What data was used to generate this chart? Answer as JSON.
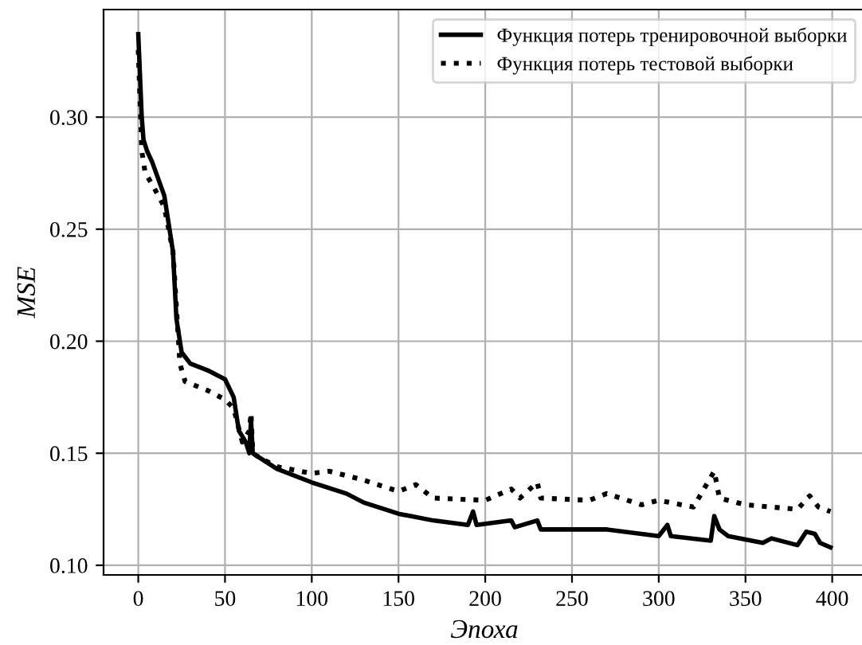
{
  "chart_data": {
    "type": "line",
    "xlabel": "Эпоха",
    "ylabel": "MSE",
    "xlim": [
      -20,
      419
    ],
    "ylim": [
      0.0957,
      0.348
    ],
    "xticks": [
      0,
      50,
      100,
      150,
      200,
      250,
      300,
      350,
      400
    ],
    "yticks": [
      {
        "value": 0.1,
        "label": "0.10"
      },
      0.15,
      {
        "value": 0.2,
        "label": "0.20"
      },
      0.25,
      {
        "value": 0.3,
        "label": "0.30"
      }
    ],
    "grid": true,
    "legend": "top right",
    "series": [
      {
        "name": "Функция потерь тренировочной выборки",
        "color": "#000000",
        "line_style": "solid",
        "x": [
          0,
          2,
          3,
          5,
          8,
          15,
          20,
          22,
          25,
          30,
          40,
          50,
          55,
          58,
          62,
          64,
          65,
          66,
          70,
          80,
          100,
          120,
          130,
          150,
          170,
          190,
          193,
          195,
          215,
          217,
          230,
          232,
          250,
          270,
          300,
          305,
          307,
          330,
          332,
          335,
          340,
          360,
          365,
          380,
          385,
          390,
          393,
          399
        ],
        "values": [
          0.337,
          0.3,
          0.29,
          0.285,
          0.28,
          0.265,
          0.24,
          0.21,
          0.195,
          0.19,
          0.187,
          0.183,
          0.175,
          0.16,
          0.155,
          0.15,
          0.165,
          0.15,
          0.148,
          0.143,
          0.137,
          0.132,
          0.128,
          0.123,
          0.12,
          0.118,
          0.124,
          0.118,
          0.12,
          0.117,
          0.12,
          0.116,
          0.116,
          0.116,
          0.113,
          0.118,
          0.113,
          0.111,
          0.122,
          0.116,
          0.113,
          0.11,
          0.112,
          0.109,
          0.115,
          0.114,
          0.11,
          0.108
        ]
      },
      {
        "name": "Функция потерь тестовой выборки",
        "color": "#000000",
        "line_style": "dotted",
        "x": [
          0,
          2,
          4,
          8,
          15,
          20,
          24,
          27,
          40,
          50,
          55,
          60,
          64,
          65,
          66,
          70,
          80,
          100,
          110,
          130,
          150,
          160,
          170,
          200,
          215,
          220,
          230,
          232,
          260,
          270,
          290,
          300,
          320,
          332,
          335,
          350,
          380,
          387,
          392,
          399
        ],
        "values": [
          0.33,
          0.285,
          0.275,
          0.27,
          0.26,
          0.24,
          0.19,
          0.182,
          0.178,
          0.174,
          0.17,
          0.155,
          0.16,
          0.168,
          0.15,
          0.148,
          0.144,
          0.141,
          0.142,
          0.138,
          0.133,
          0.136,
          0.13,
          0.129,
          0.134,
          0.13,
          0.137,
          0.13,
          0.129,
          0.132,
          0.127,
          0.129,
          0.126,
          0.142,
          0.13,
          0.127,
          0.125,
          0.131,
          0.126,
          0.124
        ]
      }
    ]
  }
}
